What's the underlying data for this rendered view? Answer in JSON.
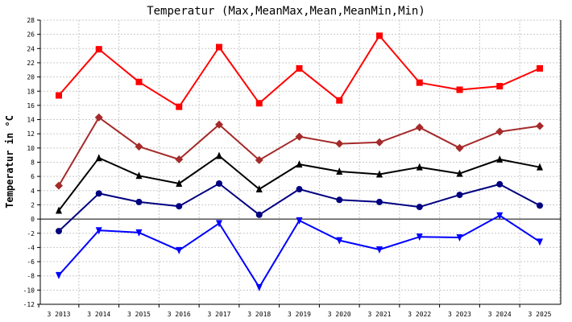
{
  "chart_data": {
    "type": "line",
    "title": "Temperatur (Max,MeanMax,Mean,MeanMin,Min)",
    "xlabel": "",
    "ylabel": "Temperatur in °C",
    "ylim": [
      -12,
      28
    ],
    "ytick_step": 2,
    "ytick_labels": [
      "-12",
      "-10",
      "-8",
      "-6",
      "-4",
      "-2",
      "0",
      "2",
      "4",
      "6",
      "8",
      "10",
      "12",
      "14",
      "16",
      "18",
      "20",
      "22",
      "24",
      "26",
      "28"
    ],
    "categories": [
      "3 2013",
      "3 2014",
      "3 2015",
      "3 2016",
      "3 2017",
      "3 2018",
      "3 2019",
      "3 2020",
      "3 2021",
      "3 2022",
      "3 2023",
      "3 2024",
      "3 2025"
    ],
    "grid": true,
    "series": [
      {
        "name": "Max",
        "color": "#ff0000",
        "marker": "square",
        "values": [
          17.4,
          23.9,
          19.3,
          15.8,
          24.2,
          16.3,
          21.2,
          16.7,
          25.8,
          19.2,
          18.2,
          18.7,
          21.2
        ]
      },
      {
        "name": "MeanMax",
        "color": "#a52a2a",
        "marker": "diamond",
        "values": [
          4.7,
          14.3,
          10.2,
          8.4,
          13.3,
          8.3,
          11.6,
          10.6,
          10.8,
          12.9,
          10.0,
          12.3,
          13.1
        ]
      },
      {
        "name": "Mean",
        "color": "#000000",
        "marker": "triangle-up",
        "values": [
          1.2,
          8.6,
          6.1,
          5.0,
          8.9,
          4.2,
          7.7,
          6.7,
          6.3,
          7.3,
          6.4,
          8.4,
          7.3
        ]
      },
      {
        "name": "MeanMin",
        "color": "#000080",
        "marker": "circle",
        "values": [
          -1.7,
          3.6,
          2.4,
          1.8,
          5.0,
          0.6,
          4.2,
          2.7,
          2.4,
          1.7,
          3.4,
          4.9,
          1.9
        ]
      },
      {
        "name": "Min",
        "color": "#0000ff",
        "marker": "triangle-down",
        "values": [
          -7.9,
          -1.6,
          -1.9,
          -4.4,
          -0.6,
          -9.6,
          -0.2,
          -3.0,
          -4.3,
          -2.5,
          -2.6,
          0.5,
          -3.2
        ]
      }
    ]
  }
}
